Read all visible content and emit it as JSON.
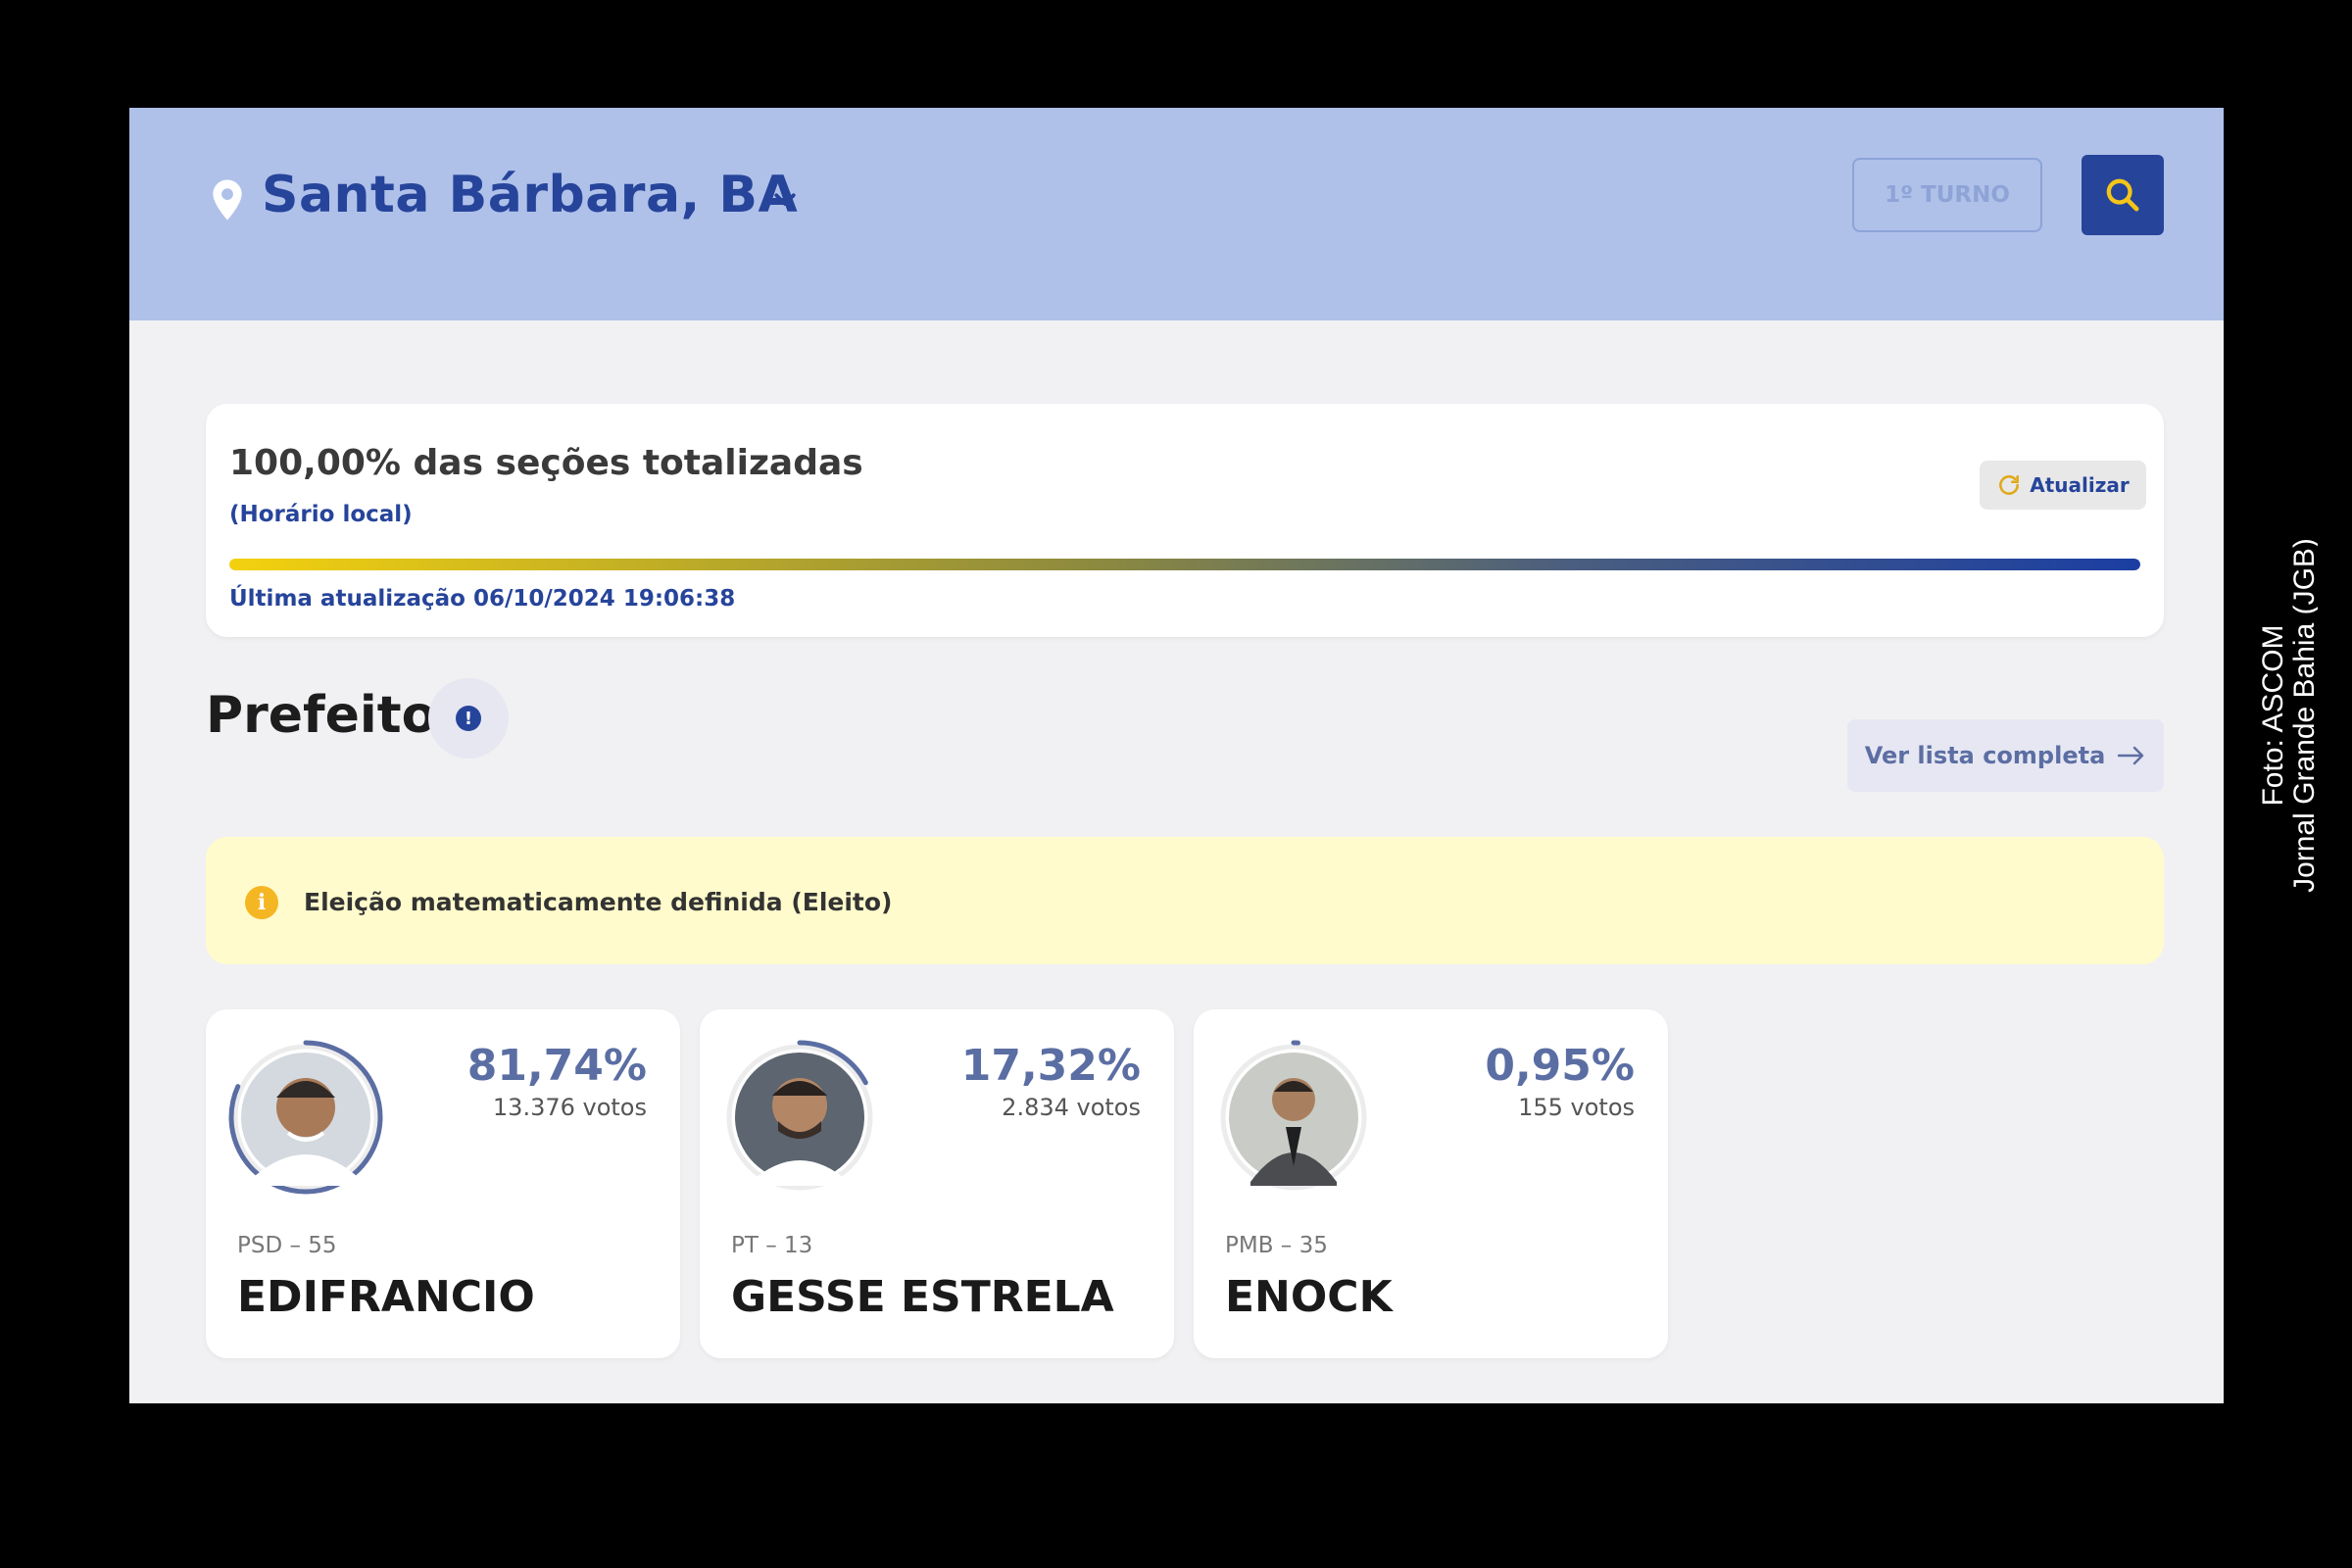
{
  "header": {
    "city": "Santa Bárbara, BA",
    "turno_label": "1º TURNO",
    "colors": {
      "bar": "#afc1e9",
      "brand": "#26449a"
    }
  },
  "status": {
    "title": "100,00% das seções totalizadas",
    "subtitle": "(Horário local)",
    "refresh_label": "Atualizar",
    "progress": 1.0,
    "last_update": "Última atualização 06/10/2024 19:06:38"
  },
  "section": {
    "title": "Prefeito",
    "full_list_label": "Ver lista completa"
  },
  "banner": {
    "text": "Eleição matematicamente definida (Eleito)"
  },
  "candidates": [
    {
      "percent": "81,74%",
      "share": 0.8174,
      "votes": "13.376 votos",
      "party": "PSD – 55",
      "name": "EDIFRANCIO"
    },
    {
      "percent": "17,32%",
      "share": 0.1732,
      "votes": "2.834 votos",
      "party": "PT – 13",
      "name": "GESSE ESTRELA"
    },
    {
      "percent": "0,95%",
      "share": 0.0095,
      "votes": "155 votos",
      "party": "PMB – 35",
      "name": "ENOCK"
    }
  ],
  "credit": {
    "line1": "Foto: ASCOM",
    "line2": "Jornal Grande Bahia (JGB)"
  }
}
